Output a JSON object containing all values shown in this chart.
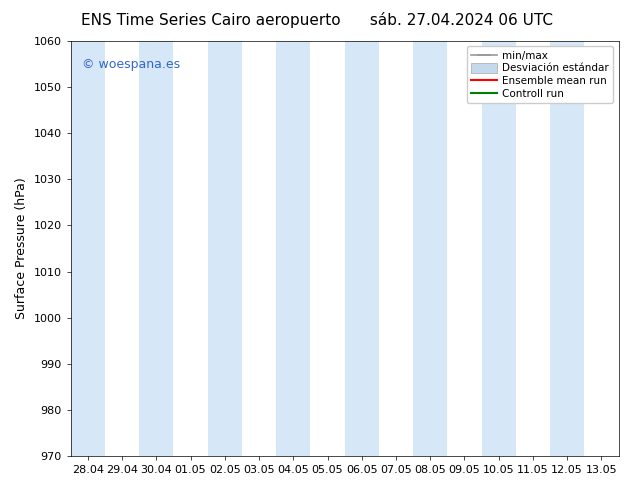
{
  "title": "ENS Time Series Cairo aeropuerto",
  "subtitle": "sáb. 27.04.2024 06 UTC",
  "ylabel": "Surface Pressure (hPa)",
  "ylim": [
    970,
    1060
  ],
  "yticks": [
    970,
    980,
    990,
    1000,
    1010,
    1020,
    1030,
    1040,
    1050,
    1060
  ],
  "x_labels": [
    "28.04",
    "29.04",
    "30.04",
    "01.05",
    "02.05",
    "03.05",
    "04.05",
    "05.05",
    "06.05",
    "07.05",
    "08.05",
    "09.05",
    "10.05",
    "11.05",
    "12.05",
    "13.05"
  ],
  "bg_color": "#ffffff",
  "plot_bg_color": "#ffffff",
  "shaded_band_color": "#d6e8f7",
  "watermark": "© woespana.es",
  "watermark_color": "#3366cc",
  "legend_label_minmax": "min/max",
  "legend_label_std": "Desviación estándar",
  "legend_label_ens": "Ensemble mean run",
  "legend_label_ctrl": "Controll run",
  "title_fontsize": 11,
  "subtitle_fontsize": 11,
  "axis_label_fontsize": 9,
  "tick_fontsize": 8,
  "watermark_fontsize": 9,
  "legend_fontsize": 7.5
}
